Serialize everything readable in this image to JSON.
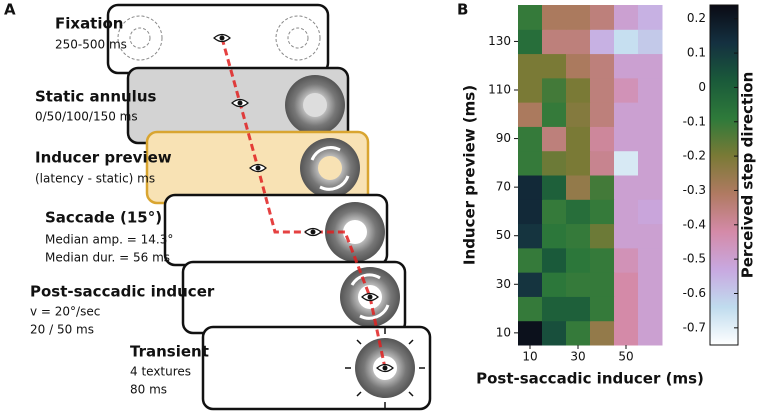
{
  "panel_a": {
    "label": "A",
    "steps": [
      {
        "title": "Fixation",
        "lines": [
          "250-500 ms"
        ]
      },
      {
        "title": "Static annulus",
        "lines": [
          "0/50/100/150 ms"
        ]
      },
      {
        "title": "Inducer preview",
        "lines": [
          "(latency - static) ms"
        ]
      },
      {
        "title": "Saccade (15°)",
        "lines": [
          "Median amp. = 14.3°",
          "Median dur. = 56 ms"
        ]
      },
      {
        "title": "Post-saccadic inducer",
        "lines": [
          "v = 20°/sec",
          "20 / 50 ms"
        ]
      },
      {
        "title": "Transient",
        "lines": [
          "4 textures",
          "80 ms"
        ]
      }
    ]
  },
  "chart_data": {
    "type": "heatmap",
    "panel_label": "B",
    "xlabel": "Post-saccadic inducer (ms)",
    "ylabel": "Inducer preview (ms)",
    "x": [
      10,
      20,
      30,
      40,
      50,
      60
    ],
    "y": [
      10,
      20,
      30,
      40,
      50,
      60,
      70,
      80,
      90,
      100,
      110,
      120,
      130,
      140
    ],
    "xlim": [
      5,
      65
    ],
    "ylim": [
      5,
      145
    ],
    "xticks": [
      10,
      30,
      50
    ],
    "yticks": [
      10,
      30,
      50,
      70,
      90,
      110,
      130
    ],
    "values": [
      [
        0.22,
        0.05,
        -0.1,
        -0.25,
        -0.42,
        -0.5
      ],
      [
        -0.1,
        0.0,
        0.0,
        -0.1,
        -0.42,
        -0.5
      ],
      [
        0.12,
        -0.08,
        -0.1,
        -0.1,
        -0.42,
        -0.5
      ],
      [
        -0.1,
        0.02,
        -0.08,
        -0.1,
        -0.45,
        -0.5
      ],
      [
        0.12,
        -0.08,
        -0.1,
        -0.18,
        -0.5,
        -0.5
      ],
      [
        0.15,
        -0.1,
        -0.05,
        -0.1,
        -0.5,
        -0.52
      ],
      [
        0.15,
        0.0,
        -0.25,
        -0.12,
        -0.5,
        -0.5
      ],
      [
        -0.1,
        -0.18,
        -0.2,
        -0.38,
        -0.68,
        -0.5
      ],
      [
        -0.1,
        -0.35,
        -0.2,
        -0.4,
        -0.5,
        -0.5
      ],
      [
        -0.3,
        -0.1,
        -0.22,
        -0.35,
        -0.5,
        -0.5
      ],
      [
        -0.2,
        -0.12,
        -0.2,
        -0.35,
        -0.45,
        -0.5
      ],
      [
        -0.2,
        -0.2,
        -0.3,
        -0.35,
        -0.5,
        -0.5
      ],
      [
        -0.05,
        -0.35,
        -0.35,
        -0.55,
        -0.65,
        -0.6
      ],
      [
        -0.1,
        -0.3,
        -0.3,
        -0.35,
        -0.5,
        -0.55
      ]
    ],
    "colorbar": {
      "label": "Perceived step direction",
      "lim": [
        -0.75,
        0.24
      ],
      "ticks": [
        0.2,
        0.1,
        0,
        -0.1,
        -0.2,
        -0.3,
        -0.4,
        -0.5,
        -0.6,
        -0.7
      ],
      "colors": [
        "#0a0a14",
        "#143040",
        "#1a5a3a",
        "#2e7a3a",
        "#7a7a36",
        "#b07a62",
        "#d48aa8",
        "#c8a8e0",
        "#c0dcee",
        "#ffffff"
      ]
    }
  }
}
